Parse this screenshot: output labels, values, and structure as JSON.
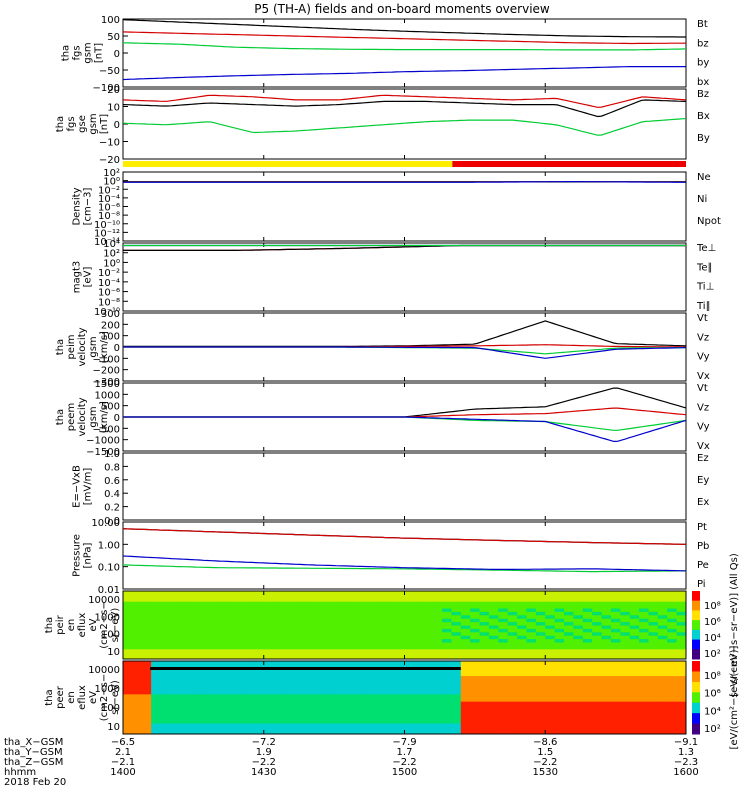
{
  "title": "P5 (TH-A) fields and on-board moments overview",
  "colors": {
    "black": "#000000",
    "red": "#d40000",
    "green": "#00cc33",
    "blue": "#0000cc",
    "yellow": "#ffee00",
    "bar_red": "#ee0000"
  },
  "chart_data": [
    {
      "type": "line",
      "id": "fgs-gsm",
      "ylabel": [
        "tha",
        "fgs",
        "gsm",
        "[nT]"
      ],
      "ylim": [
        -100,
        100
      ],
      "yticks": [
        "100",
        "50",
        "0",
        "−50",
        "−100"
      ],
      "tick_values": [
        100,
        50,
        0,
        -50,
        -100
      ],
      "series": [
        {
          "name": "Bt",
          "color": "black",
          "values": [
            98,
            91,
            84,
            77,
            70,
            64,
            59,
            54,
            50,
            48,
            47
          ]
        },
        {
          "name": "bz",
          "color": "red",
          "values": [
            62,
            58,
            54,
            50,
            46,
            42,
            38,
            34,
            30,
            28,
            29
          ]
        },
        {
          "name": "by",
          "color": "green",
          "values": [
            30,
            26,
            17,
            13,
            11,
            10,
            10,
            10,
            9,
            9,
            12
          ]
        },
        {
          "name": "bx",
          "color": "blue",
          "values": [
            -78,
            -72,
            -67,
            -63,
            -60,
            -55,
            -52,
            -48,
            -44,
            -40,
            -40
          ]
        }
      ]
    },
    {
      "type": "line",
      "id": "fgs-gse",
      "ylabel": [
        "tha",
        "fgs",
        "gse",
        "gsm",
        "[nT]"
      ],
      "ylim": [
        -25,
        20
      ],
      "yticks": [
        "20",
        "10",
        "0",
        "−10",
        "−20"
      ],
      "tick_values": [
        20,
        10,
        0,
        -10,
        -20
      ],
      "series": [
        {
          "name": "Bz",
          "color": "red",
          "values": [
            13,
            12,
            16,
            15,
            13,
            13,
            16,
            15,
            14,
            13,
            14,
            8,
            15,
            13
          ]
        },
        {
          "name": "Bx",
          "color": "black",
          "values": [
            10,
            9,
            11,
            10,
            9,
            10,
            12,
            12,
            11,
            10,
            10,
            2,
            13,
            12
          ]
        },
        {
          "name": "By",
          "color": "green",
          "values": [
            -2,
            -3,
            -1,
            -8,
            -7,
            -5,
            -3,
            -1,
            0,
            0,
            -3,
            -10,
            -1,
            1
          ]
        }
      ],
      "legend": [
        "Bz",
        "Bx",
        "By"
      ]
    },
    {
      "type": "bar-status",
      "id": "mode-bar",
      "segments": [
        {
          "color": "yellow",
          "from": "1400",
          "to": "1525"
        },
        {
          "color": "bar_red",
          "from": "1525",
          "to": "1600"
        }
      ]
    },
    {
      "type": "line",
      "id": "density",
      "ylabel": [
        "Density",
        "[cm−3]"
      ],
      "yticks": [
        "10²",
        "10⁰",
        "10⁻²",
        "10⁻⁴",
        "10⁻⁶",
        "10⁻⁸",
        "10⁻¹⁰",
        "10⁻¹²",
        "10⁻¹⁴"
      ],
      "series": [
        {
          "name": "Ne",
          "color": "red",
          "values": [
            0.5,
            0.5,
            0.5,
            0.5,
            0.5,
            0.5
          ]
        },
        {
          "name": "Ni",
          "color": "black",
          "values": [
            0.5,
            0.5,
            0.5,
            0.5,
            0.5,
            0.5
          ]
        },
        {
          "name": "Npot",
          "color": "blue",
          "values": [
            0.4,
            0.4,
            0.4,
            0.4,
            0.6,
            0.4
          ]
        }
      ]
    },
    {
      "type": "line",
      "id": "magt3",
      "ylabel": [
        "magt3",
        "[eV]"
      ],
      "yticks": [
        "10⁴",
        "10²",
        "10⁰",
        "10⁻²",
        "10⁻⁴",
        "10⁻⁶",
        "10⁻⁸",
        "10⁻¹⁰"
      ],
      "series": [
        {
          "name": "Te⊥",
          "color": "red",
          "values": [
            300,
            300,
            800,
            3000,
            3000,
            3000
          ]
        },
        {
          "name": "Te∥",
          "color": "black",
          "values": [
            300,
            300,
            800,
            3000,
            3000,
            3000
          ]
        },
        {
          "name": "Ti⊥",
          "color": "blue",
          "values": [
            3000,
            3000,
            3000,
            3000,
            3000,
            3000
          ]
        },
        {
          "name": "Ti∥",
          "color": "green",
          "values": [
            3000,
            3000,
            3000,
            3000,
            3000,
            3000
          ]
        }
      ]
    },
    {
      "type": "line",
      "id": "peim-velocity",
      "ylabel": [
        "tha",
        "peim",
        "velocity",
        "gsm",
        "[km/s]"
      ],
      "ylim": [
        -300,
        300
      ],
      "yticks": [
        "300",
        "200",
        "100",
        "0",
        "−100",
        "−200",
        "−300"
      ],
      "tick_values": [
        300,
        200,
        100,
        0,
        -100,
        -200,
        -300
      ],
      "series": [
        {
          "name": "Vt",
          "color": "black",
          "values": [
            5,
            5,
            5,
            5,
            10,
            25,
            230,
            30,
            10
          ]
        },
        {
          "name": "Vz",
          "color": "red",
          "values": [
            0,
            0,
            0,
            0,
            5,
            10,
            20,
            5,
            0
          ]
        },
        {
          "name": "Vy",
          "color": "green",
          "values": [
            0,
            0,
            0,
            0,
            -5,
            -10,
            -60,
            -10,
            -5
          ]
        },
        {
          "name": "Vx",
          "color": "blue",
          "values": [
            0,
            0,
            0,
            0,
            -3,
            -5,
            -100,
            -20,
            -5
          ]
        }
      ]
    },
    {
      "type": "line",
      "id": "peem-velocity",
      "ylabel": [
        "tha",
        "peem",
        "velocity",
        "gsm",
        "[km/s]"
      ],
      "ylim": [
        -1500,
        1500
      ],
      "yticks": [
        "1500",
        "1000",
        "500",
        "0",
        "−500",
        "−1000",
        "−1500"
      ],
      "tick_values": [
        1500,
        1000,
        500,
        0,
        -500,
        -1000,
        -1500
      ],
      "series": [
        {
          "name": "Vt",
          "color": "black",
          "values": [
            0,
            0,
            0,
            0,
            0,
            350,
            450,
            1300,
            400
          ]
        },
        {
          "name": "Vz",
          "color": "red",
          "values": [
            0,
            0,
            0,
            0,
            0,
            100,
            150,
            400,
            100
          ]
        },
        {
          "name": "Vy",
          "color": "green",
          "values": [
            0,
            0,
            0,
            0,
            0,
            -150,
            -200,
            -600,
            -150
          ]
        },
        {
          "name": "Vx",
          "color": "blue",
          "values": [
            0,
            0,
            0,
            0,
            0,
            -100,
            -200,
            -1100,
            -150
          ]
        }
      ]
    },
    {
      "type": "line",
      "id": "e-field",
      "ylabel": [
        "E=−VxB",
        "[mV/m]"
      ],
      "ylim": [
        0,
        1
      ],
      "yticks": [
        "1.0",
        "0.8",
        "0.6",
        "0.4",
        "0.2",
        "0.0"
      ],
      "tick_values": [
        1.0,
        0.8,
        0.6,
        0.4,
        0.2,
        0.0
      ],
      "series": [
        {
          "name": "Ez",
          "color": "red",
          "values": []
        },
        {
          "name": "Ey",
          "color": "green",
          "values": []
        },
        {
          "name": "Ex",
          "color": "blue",
          "values": []
        }
      ]
    },
    {
      "type": "line",
      "id": "pressure",
      "ylabel": [
        "Pressure",
        "[nPa]"
      ],
      "yticks": [
        "10.00",
        "1.00",
        "0.10",
        "0.01"
      ],
      "series": [
        {
          "name": "Pt",
          "color": "black",
          "values": [
            5.0,
            3.6,
            2.6,
            1.9,
            1.5,
            1.2,
            1.0
          ]
        },
        {
          "name": "Pb",
          "color": "red",
          "values": [
            5.0,
            3.6,
            2.6,
            1.9,
            1.5,
            1.2,
            1.0
          ]
        },
        {
          "name": "Pe",
          "color": "green",
          "values": [
            0.12,
            0.09,
            0.085,
            0.08,
            0.07,
            0.06,
            0.065
          ]
        },
        {
          "name": "Pi",
          "color": "blue",
          "values": [
            0.3,
            0.18,
            0.12,
            0.09,
            0.075,
            0.08,
            0.065
          ]
        }
      ]
    },
    {
      "type": "heatmap",
      "id": "peir-en-eflux",
      "ylabel": [
        "tha",
        "peir",
        "en",
        "eflux",
        "eV",
        "(cm2−s−",
        "sr−eV)"
      ],
      "yticks": [
        "10000",
        "1000",
        "100",
        "10"
      ],
      "colorbar_label": "[eV/(cm²−s−sr−eV)] (All Qs)",
      "colorbar_ticks": [
        "10⁸",
        "10⁶",
        "10⁴",
        "10²"
      ]
    },
    {
      "type": "heatmap",
      "id": "peer-en-eflux",
      "ylabel": [
        "tha",
        "peer",
        "en",
        "eflux",
        "eV",
        "(cm2−s−",
        "sr−eV)"
      ],
      "yticks": [
        "10000",
        "1000",
        "100",
        "10"
      ],
      "colorbar_label": "[eV/(cm²−s−sr−eV)]",
      "colorbar_ticks": [
        "10⁸",
        "10⁶",
        "10⁴",
        "10²"
      ]
    }
  ],
  "x_axis": {
    "rows": [
      {
        "label": "tha_X−GSM",
        "values": [
          "−6.5",
          "−7.2",
          "−7.9",
          "−8.6",
          "−9.1"
        ]
      },
      {
        "label": "tha_Y−GSM",
        "values": [
          "2.1",
          "1.9",
          "1.7",
          "1.5",
          "1.3"
        ]
      },
      {
        "label": "tha_Z−GSM",
        "values": [
          "−2.1",
          "−2.2",
          "−2.2",
          "−2.2",
          "−2.3"
        ]
      },
      {
        "label": "hhmm",
        "values": [
          "1400",
          "1430",
          "1500",
          "1530",
          "1600"
        ]
      }
    ],
    "date": "2018 Feb 20"
  }
}
